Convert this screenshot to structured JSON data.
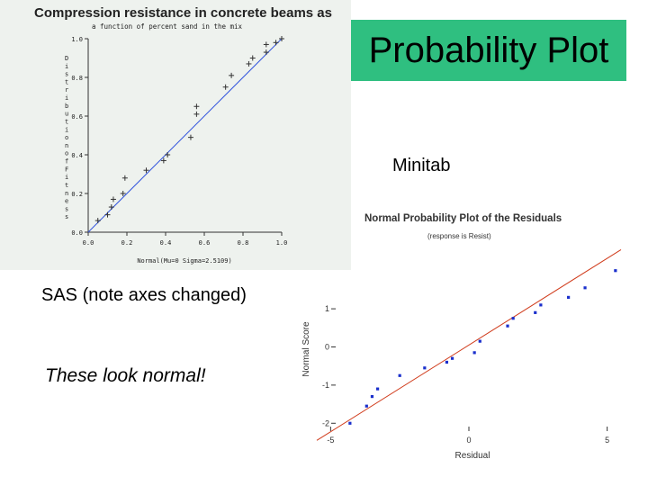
{
  "slide": {
    "title": "Probability Plot",
    "minitab_label": "Minitab",
    "sas_note": "SAS (note axes changed)",
    "normal_note": "These look normal!",
    "title_box_color": "#2fbf80"
  },
  "chart_data": [
    {
      "type": "scatter",
      "source": "SAS",
      "title": "Compression resistance in concrete beams as",
      "subtitle": "a function of percent sand in the mix",
      "xlabel": "Normal(Mu=0 Sigma=2.5109)",
      "ylabel": "Distribution of Fitness",
      "xlim": [
        0,
        1
      ],
      "ylim": [
        0,
        1
      ],
      "xticks": [
        "0.0",
        "0.2",
        "0.4",
        "0.6",
        "0.8",
        "1.0"
      ],
      "yticks": [
        "0.0",
        "0.2",
        "0.4",
        "0.6",
        "0.8",
        "1.0"
      ],
      "marker": "plus",
      "point_color": "#333333",
      "line_color": "#3355dd",
      "reference_line": [
        [
          0,
          0
        ],
        [
          1,
          1
        ]
      ],
      "points": [
        {
          "x": 0.05,
          "y": 0.06
        },
        {
          "x": 0.1,
          "y": 0.09
        },
        {
          "x": 0.12,
          "y": 0.13
        },
        {
          "x": 0.13,
          "y": 0.17
        },
        {
          "x": 0.18,
          "y": 0.2
        },
        {
          "x": 0.19,
          "y": 0.28
        },
        {
          "x": 0.3,
          "y": 0.32
        },
        {
          "x": 0.39,
          "y": 0.37
        },
        {
          "x": 0.41,
          "y": 0.4
        },
        {
          "x": 0.53,
          "y": 0.49
        },
        {
          "x": 0.56,
          "y": 0.61
        },
        {
          "x": 0.56,
          "y": 0.65
        },
        {
          "x": 0.71,
          "y": 0.75
        },
        {
          "x": 0.74,
          "y": 0.81
        },
        {
          "x": 0.83,
          "y": 0.87
        },
        {
          "x": 0.85,
          "y": 0.9
        },
        {
          "x": 0.92,
          "y": 0.93
        },
        {
          "x": 0.92,
          "y": 0.97
        },
        {
          "x": 0.97,
          "y": 0.98
        },
        {
          "x": 1.0,
          "y": 1.0
        }
      ]
    },
    {
      "type": "scatter",
      "source": "Minitab",
      "title": "Normal Probability Plot of the Residuals",
      "subtitle": "(response is Resist)",
      "xlabel": "Residual",
      "ylabel": "Normal Score",
      "xlim": [
        -5.5,
        5.5
      ],
      "ylim": [
        -2.3,
        2.3
      ],
      "xticks": [
        -5,
        0,
        5
      ],
      "xtick_labels": [
        "-5",
        "0",
        "5"
      ],
      "yticks": [
        1,
        0,
        -1,
        -2
      ],
      "ytick_labels": [
        "1",
        "0",
        "-1",
        "-2"
      ],
      "point_color": "#1a2fcc",
      "line_color": "#d03a1a",
      "reference_line": [
        [
          -5.5,
          -2.45
        ],
        [
          5.5,
          2.55
        ]
      ],
      "points": [
        {
          "x": -4.3,
          "y": -2.0
        },
        {
          "x": -3.7,
          "y": -1.55
        },
        {
          "x": -3.5,
          "y": -1.3
        },
        {
          "x": -3.3,
          "y": -1.1
        },
        {
          "x": -2.5,
          "y": -0.75
        },
        {
          "x": -1.6,
          "y": -0.55
        },
        {
          "x": -0.8,
          "y": -0.4
        },
        {
          "x": -0.6,
          "y": -0.3
        },
        {
          "x": 0.2,
          "y": -0.15
        },
        {
          "x": 0.4,
          "y": 0.15
        },
        {
          "x": 1.4,
          "y": 0.55
        },
        {
          "x": 1.6,
          "y": 0.75
        },
        {
          "x": 2.4,
          "y": 0.9
        },
        {
          "x": 2.6,
          "y": 1.1
        },
        {
          "x": 3.6,
          "y": 1.3
        },
        {
          "x": 4.2,
          "y": 1.55
        },
        {
          "x": 5.3,
          "y": 2.0
        }
      ]
    }
  ]
}
